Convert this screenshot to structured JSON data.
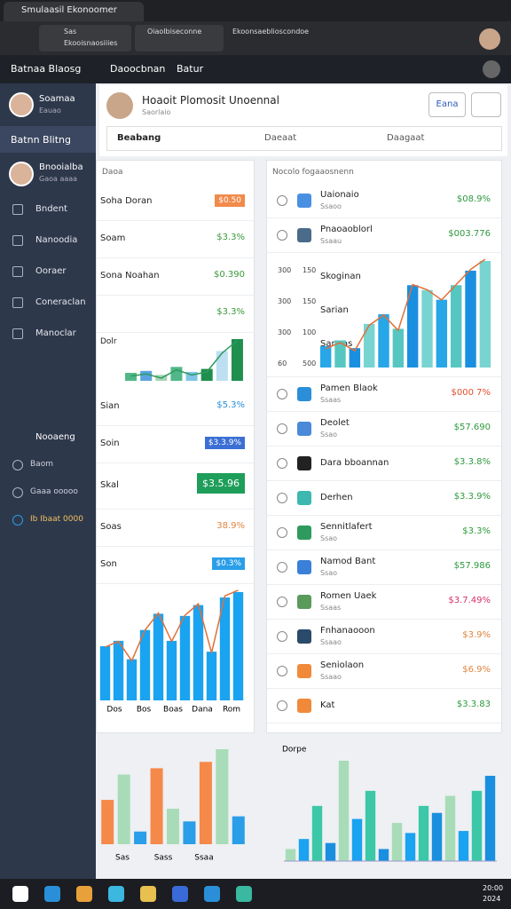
{
  "browser": {
    "tab_title": "Smulaasil Ekonoomer",
    "tab2": "Oiaolbiseconne",
    "tab3": "Ekoonsaeblioscondoe",
    "address": [
      "Sas",
      "Ekooisnaosiiies"
    ]
  },
  "app_header": {
    "brand": "Batnaa Blaosg",
    "nav": [
      "Daoocbnan",
      "Batur"
    ]
  },
  "sidebar": {
    "profile": {
      "name": "Soamaa",
      "sub": "Eauao"
    },
    "section": "Batnn Blitng",
    "profile2": {
      "name": "Bnooialba",
      "sub": "Gaoa aaaa"
    },
    "items": [
      "Bndent",
      "Nanoodia",
      "Ooraer",
      "Coneraclan",
      "Manoclar"
    ],
    "footer_title": "Nooaeng",
    "footer_items": [
      "Baom",
      "Gaaa ooooo",
      "Ib Ibaat 0000"
    ]
  },
  "header_card": {
    "name": "Hoaoit Plomosit Unoennal",
    "sub": "Saorlaio",
    "button": "Eana"
  },
  "tabs": [
    "Beabang",
    "Daeaat",
    "Daagaat"
  ],
  "left_panel": {
    "title": "Daoa",
    "items": [
      {
        "label": "Soha Doran",
        "value": "$0.50",
        "color": "#f28a4b",
        "badge": true
      },
      {
        "label": "Soam",
        "value": "$3.3%",
        "color": "#3a9a3a"
      },
      {
        "label": "Sona Noahan",
        "value": "$0.390",
        "color": "#3a9a3a"
      },
      {
        "value": "$3.3%",
        "color": "#3a9a3a"
      },
      {
        "label": "Dolr",
        "chart": [
          8,
          10,
          6,
          14,
          9,
          12,
          30,
          42
        ],
        "colors": [
          "#52b788",
          "#5ba3e0",
          "#a4d4b4",
          "#52b788",
          "#80c4e8",
          "#1e8f4e",
          "#bcdff2",
          "#1e8f4e"
        ]
      },
      {
        "label": "Sian",
        "value": "$5.3%",
        "color": "#2a8fd8"
      },
      {
        "label": "Soin",
        "value": "$3.3.9%",
        "color": "#3b6fd4",
        "badge": true
      },
      {
        "label": "Skal",
        "value": "$3.5.96",
        "color": "#1e9e5a",
        "button": true
      },
      {
        "label": "Soas",
        "value": "38.9%",
        "color": "#e0853f"
      },
      {
        "label": "Son",
        "value": "$0.3%",
        "color": "#2a9ee8",
        "badge": true
      },
      {
        "chart": [
          50,
          55,
          38,
          65,
          80,
          55,
          78,
          88,
          45,
          95,
          100
        ],
        "colors": [
          "#1aa3f0"
        ],
        "x": [
          "Dos",
          "Bos",
          "Boas",
          "Dana",
          "Rom"
        ]
      }
    ]
  },
  "right_panel": {
    "title": "Nocolo fogaaosnenn",
    "items": [
      {
        "name": "Uaionaio",
        "sub": "Ssaoo",
        "value": "$08.9%",
        "color": "#2e9a3e",
        "icon": "#4a90e2"
      },
      {
        "name": "Pnaoaoblorl",
        "sub": "Ssaau",
        "value": "$003.776",
        "color": "#2e9a3e",
        "icon": "#4a6b8a"
      },
      {
        "labels": [
          "Skoginan",
          "Sarian",
          "Sanaas"
        ],
        "axis": [
          "300",
          "300",
          "300",
          "60"
        ],
        "axis2": [
          "150",
          "150",
          "100",
          "500"
        ],
        "chart": [
          22,
          28,
          20,
          45,
          55,
          40,
          85,
          80,
          70,
          85,
          100,
          110
        ],
        "colors": [
          "#27a6e8",
          "#56c7c0",
          "#1a8fe0",
          "#78d4d0"
        ]
      },
      {
        "name": "Pamen Blaok",
        "sub": "Ssaas",
        "value": "$000 7%",
        "color": "#e0502e",
        "icon": "#2a8fd8"
      },
      {
        "name": "Deolet",
        "sub": "Ssao",
        "value": "$57.690",
        "color": "#2e9a3e",
        "icon": "#4a8ad8"
      },
      {
        "name": "Dara bboannan",
        "value": "$3.3.8%",
        "color": "#2e9a3e",
        "icon": "#222222"
      },
      {
        "name": "Derhen",
        "value": "$3.3.9%",
        "color": "#2e9a3e",
        "icon": "#3cb8b0"
      },
      {
        "name": "Sennitlafert",
        "sub": "Ssao",
        "value": "$3.3%",
        "color": "#2e9a3e",
        "icon": "#2e9a5e"
      },
      {
        "name": "Namod Bant",
        "sub": "Ssao",
        "value": "$57.986",
        "color": "#2e9a3e",
        "icon": "#3a80d8"
      },
      {
        "name": "Romen Uaek",
        "sub": "Ssaas",
        "value": "$3.7.49%",
        "color": "#d8306e",
        "icon": "#5a9a5a"
      },
      {
        "name": "Fnhanaooon",
        "sub": "Ssaao",
        "value": "$3.9%",
        "color": "#e0853f",
        "icon": "#2a4a6a"
      },
      {
        "name": "Seniolaon",
        "sub": "Ssaao",
        "value": "$6.9%",
        "color": "#e0853f",
        "icon": "#f08a3a"
      },
      {
        "name": "Kat",
        "value": "$3.3.83",
        "color": "#2e9a3e",
        "icon": "#f08a3a"
      }
    ]
  },
  "bottom_left": {
    "chart": [
      35,
      55,
      10,
      60,
      28,
      18,
      65,
      75,
      22
    ],
    "colors": [
      "#f5894a",
      "#a8dcb8",
      "#2a9ee8"
    ],
    "x": [
      "Sas",
      "Sass",
      "Ssaa"
    ]
  },
  "bottom_right": {
    "title": "Dorpe",
    "chart": [
      12,
      22,
      55,
      18,
      100,
      42,
      70,
      12,
      38,
      28,
      55,
      48,
      65,
      30,
      70,
      85
    ],
    "colors": [
      "#a8dcb8",
      "#1aa3f0",
      "#3cc8a8",
      "#1a8fe0"
    ]
  },
  "taskbar": {
    "time": "20:00",
    "date": "2024"
  }
}
